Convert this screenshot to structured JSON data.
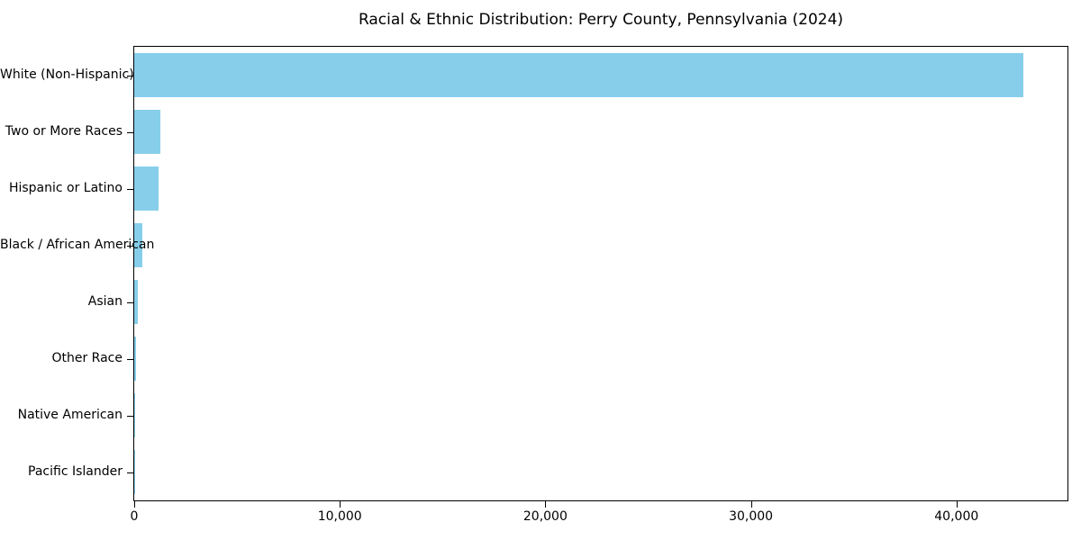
{
  "title": "Racial & Ethnic Distribution: Perry County, Pennsylvania (2024)",
  "chart_data": {
    "type": "bar",
    "orientation": "horizontal",
    "title": "Racial & Ethnic Distribution: Perry County, Pennsylvania (2024)",
    "categories": [
      "White (Non-Hispanic)",
      "Two or More Races",
      "Hispanic or Latino",
      "Black / African American",
      "Asian",
      "Other Race",
      "Native American",
      "Pacific Islander"
    ],
    "values": [
      43240,
      1270,
      1180,
      410,
      170,
      70,
      45,
      15
    ],
    "xlabel": "",
    "ylabel": "",
    "xlim": [
      0,
      45400
    ],
    "x_ticks": [
      0,
      10000,
      20000,
      30000,
      40000
    ],
    "x_tick_labels": [
      "0",
      "10,000",
      "20,000",
      "30,000",
      "40,000"
    ],
    "bar_color": "#87CEEB",
    "text_color": "#000000",
    "grid": false,
    "legend": "none",
    "plot_border": "full-box"
  }
}
